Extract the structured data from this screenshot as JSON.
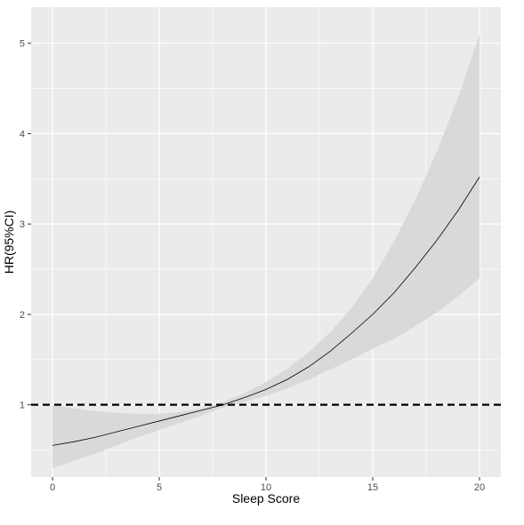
{
  "chart_data": {
    "type": "line",
    "title": "",
    "xlabel": "Sleep Score",
    "ylabel": "HR(95%CI)",
    "xlim": [
      -1,
      21
    ],
    "ylim": [
      0.2,
      5.4
    ],
    "x_ticks": [
      0,
      5,
      10,
      15,
      20
    ],
    "x_tick_labels": [
      "0",
      "5",
      "10",
      "15",
      "20"
    ],
    "y_ticks": [
      1,
      2,
      3,
      4,
      5
    ],
    "y_tick_labels": [
      "1",
      "2",
      "3",
      "4",
      "5"
    ],
    "grid": true,
    "legend": "none",
    "reference_line": {
      "y": 1,
      "style": "dashed",
      "color": "#000000"
    },
    "series": [
      {
        "x": [
          0,
          1,
          2,
          3,
          4,
          5,
          6,
          7,
          8,
          9,
          10,
          11,
          12,
          13,
          14,
          15,
          16,
          17,
          18,
          19,
          20
        ],
        "hr": [
          0.55,
          0.59,
          0.64,
          0.7,
          0.76,
          0.82,
          0.88,
          0.94,
          1.0,
          1.08,
          1.17,
          1.28,
          1.42,
          1.59,
          1.79,
          2.0,
          2.24,
          2.52,
          2.82,
          3.15,
          3.52
        ],
        "lower": [
          0.3,
          0.38,
          0.46,
          0.55,
          0.64,
          0.72,
          0.8,
          0.88,
          0.97,
          1.03,
          1.1,
          1.18,
          1.28,
          1.39,
          1.5,
          1.62,
          1.73,
          1.87,
          2.02,
          2.2,
          2.4
        ],
        "upper": [
          1.0,
          0.96,
          0.93,
          0.91,
          0.9,
          0.9,
          0.92,
          0.96,
          1.03,
          1.13,
          1.25,
          1.4,
          1.58,
          1.8,
          2.07,
          2.4,
          2.81,
          3.27,
          3.8,
          4.4,
          5.1
        ]
      }
    ],
    "colors": {
      "panel_background": "#ebebeb",
      "gridline": "#ffffff",
      "ribbon": "#d9d9d9",
      "line": "#000000",
      "axis_text": "#4d4d4d",
      "axis_title": "#000000"
    }
  }
}
